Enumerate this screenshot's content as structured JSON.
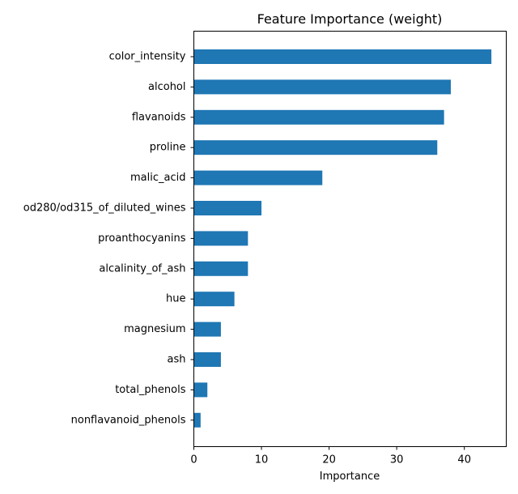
{
  "chart_data": {
    "type": "bar",
    "orientation": "horizontal",
    "title": "Feature Importance (weight)",
    "xlabel": "Importance",
    "ylabel": "",
    "xlim": [
      0,
      46.2
    ],
    "xticks": [
      0,
      10,
      20,
      30,
      40
    ],
    "grid": false,
    "legend": "none",
    "bar_color": "#1f77b4",
    "categories": [
      "color_intensity",
      "alcohol",
      "flavanoids",
      "proline",
      "malic_acid",
      "od280/od315_of_diluted_wines",
      "proanthocyanins",
      "alcalinity_of_ash",
      "hue",
      "magnesium",
      "ash",
      "total_phenols",
      "nonflavanoid_phenols"
    ],
    "values": [
      44,
      38,
      37,
      36,
      19,
      10,
      8,
      8,
      6,
      4,
      4,
      2,
      1
    ]
  }
}
